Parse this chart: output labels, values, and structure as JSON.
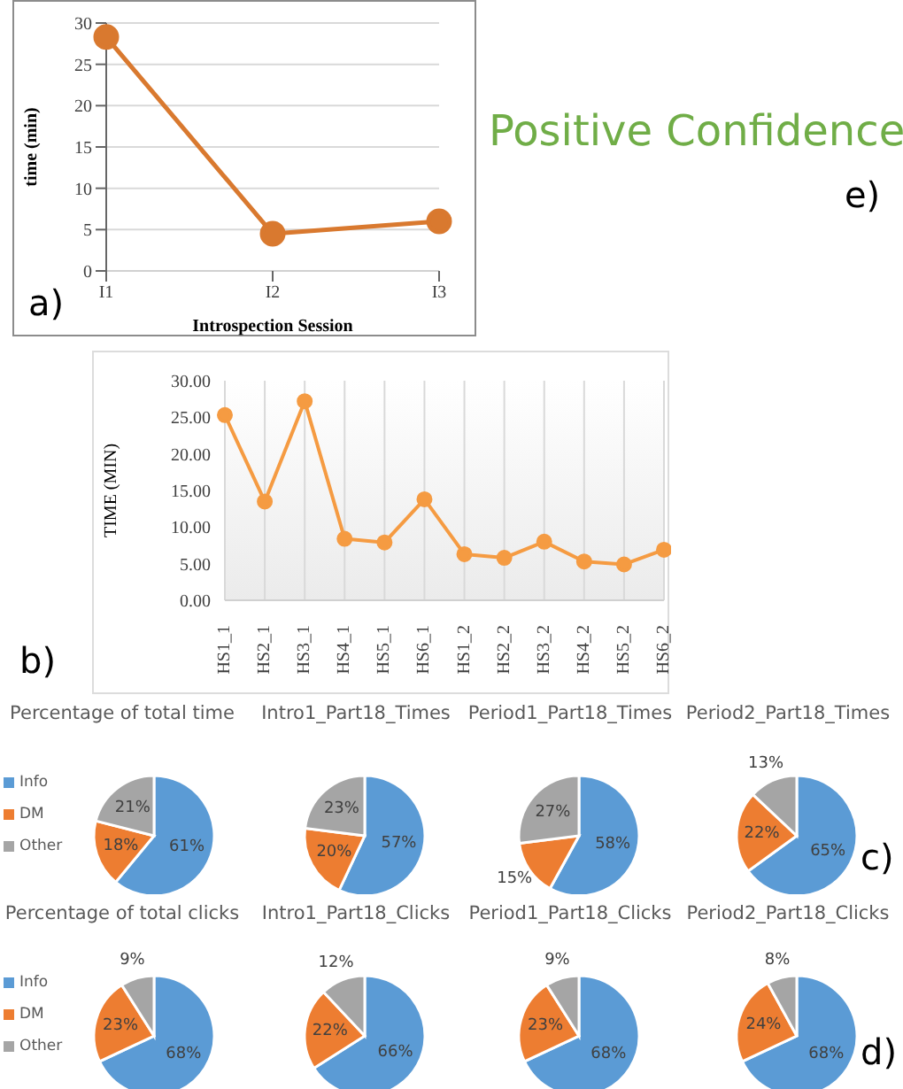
{
  "chart_data": [
    {
      "type": "line",
      "categories": [
        "I1",
        "I2",
        "I3"
      ],
      "values": [
        28.3,
        4.5,
        6.0
      ],
      "color": "#d9792f",
      "ylim": [
        0,
        30
      ],
      "yticks": [
        0,
        5,
        10,
        15,
        20,
        25,
        30
      ],
      "grid": "y",
      "marker": "circle",
      "xlabel": "Introspection Session",
      "ylabel": "time (min)",
      "annotations": [
        "a)"
      ]
    },
    {
      "type": "other",
      "title": "Positive Confidence",
      "annotations": [
        "e)"
      ]
    },
    {
      "type": "line",
      "categories": [
        "HS1_1",
        "HS2_1",
        "HS3_1",
        "HS4_1",
        "HS5_1",
        "HS6_1",
        "HS1_2",
        "HS2_2",
        "HS3_2",
        "HS4_2",
        "HS5_2",
        "HS6_2"
      ],
      "values": [
        25.3,
        13.5,
        27.2,
        8.4,
        7.9,
        13.8,
        6.3,
        5.8,
        8.0,
        5.3,
        4.9,
        6.9
      ],
      "color": "#f59b42",
      "ylim": [
        0,
        30
      ],
      "yticks": [
        {
          "value": 0,
          "label": "0.00"
        },
        {
          "value": 5,
          "label": "5.00"
        },
        {
          "value": 10,
          "label": "10.00"
        },
        {
          "value": 15,
          "label": "15.00"
        },
        {
          "value": 20,
          "label": "20.00"
        },
        {
          "value": 25,
          "label": "25.00"
        },
        {
          "value": 30,
          "label": "30.00"
        }
      ],
      "grid": "x",
      "marker": "circle",
      "ylabel": "TIME (MIN)",
      "annotations": [
        "b)"
      ]
    },
    {
      "type": "pie",
      "title": "Percentage of total time",
      "categories": [
        "Info",
        "DM",
        "Other"
      ],
      "values": [
        61,
        18,
        21
      ],
      "value_labels": [
        "61%",
        "18%",
        "21%"
      ],
      "colors": [
        "#5b9bd5",
        "#ed7d31",
        "#a5a5a5"
      ],
      "legend": "left"
    },
    {
      "type": "pie",
      "title": "Intro1_Part18_Times",
      "categories": [
        null,
        null,
        null
      ],
      "values": [
        57,
        20,
        23
      ],
      "value_labels": [
        "57%",
        "20%",
        "23%"
      ],
      "colors": [
        "#5b9bd5",
        "#ed7d31",
        "#a5a5a5"
      ]
    },
    {
      "type": "pie",
      "title": "Period1_Part18_Times",
      "categories": [
        null,
        null,
        null
      ],
      "values": [
        58,
        15,
        27
      ],
      "value_labels": [
        "58%",
        "15%",
        "27%"
      ],
      "colors": [
        "#5b9bd5",
        "#ed7d31",
        "#a5a5a5"
      ]
    },
    {
      "type": "pie",
      "title": "Period2_Part18_Times",
      "categories": [
        null,
        null,
        null
      ],
      "values": [
        65,
        22,
        13
      ],
      "value_labels": [
        "65%",
        "22%",
        "13%"
      ],
      "colors": [
        "#5b9bd5",
        "#ed7d31",
        "#a5a5a5"
      ],
      "annotations": [
        "c)"
      ]
    },
    {
      "type": "pie",
      "title": "Percentage of total clicks",
      "categories": [
        "Info",
        "DM",
        "Other"
      ],
      "values": [
        68,
        23,
        9
      ],
      "value_labels": [
        "68%",
        "23%",
        "9%"
      ],
      "colors": [
        "#5b9bd5",
        "#ed7d31",
        "#a5a5a5"
      ],
      "legend": "left"
    },
    {
      "type": "pie",
      "title": "Intro1_Part18_Clicks",
      "categories": [
        null,
        null,
        null
      ],
      "values": [
        66,
        22,
        12
      ],
      "value_labels": [
        "66%",
        "22%",
        "12%"
      ],
      "colors": [
        "#5b9bd5",
        "#ed7d31",
        "#a5a5a5"
      ]
    },
    {
      "type": "pie",
      "title": "Period1_Part18_Clicks",
      "categories": [
        null,
        null,
        null
      ],
      "values": [
        68,
        23,
        9
      ],
      "value_labels": [
        "68%",
        "23%",
        "9%"
      ],
      "colors": [
        "#5b9bd5",
        "#ed7d31",
        "#a5a5a5"
      ]
    },
    {
      "type": "pie",
      "title": "Period2_Part18_Clicks",
      "categories": [
        null,
        null,
        null
      ],
      "values": [
        68,
        24,
        8
      ],
      "value_labels": [
        "68%",
        "24%",
        "8%"
      ],
      "colors": [
        "#5b9bd5",
        "#ed7d31",
        "#a5a5a5"
      ],
      "annotations": [
        "d)"
      ]
    }
  ]
}
